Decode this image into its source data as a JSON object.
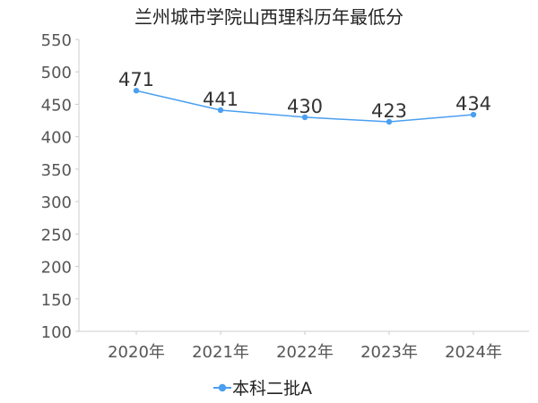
{
  "chart_data": {
    "type": "line",
    "title": "兰州城市学院山西理科历年最低分",
    "xlabel": "",
    "ylabel": "",
    "categories": [
      "2020年",
      "2021年",
      "2022年",
      "2023年",
      "2024年"
    ],
    "series": [
      {
        "name": "本科二批A",
        "values": [
          471,
          441,
          430,
          423,
          434
        ]
      }
    ],
    "ylim": [
      100,
      550
    ],
    "yticks": [
      "100",
      "150",
      "200",
      "250",
      "300",
      "350",
      "400",
      "450",
      "500",
      "550"
    ],
    "grid": false,
    "legend_position": "bottom-center",
    "colors": {
      "series": "#4a9ff0",
      "axis": "#cccccc"
    }
  }
}
